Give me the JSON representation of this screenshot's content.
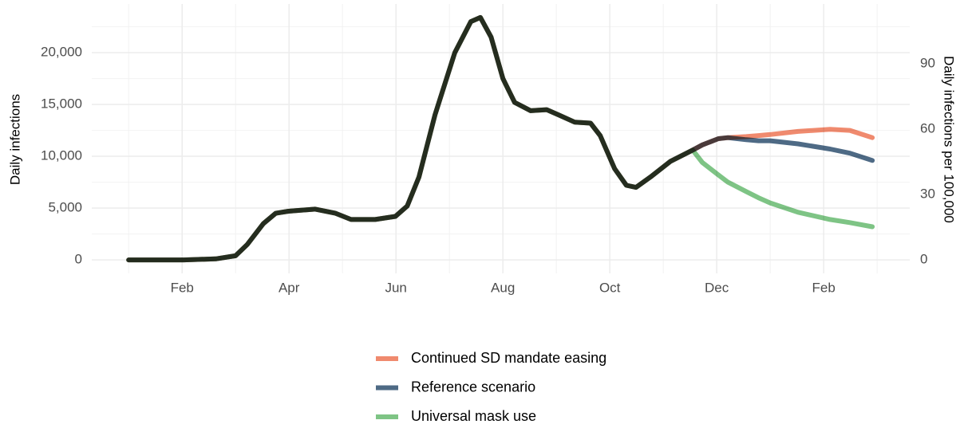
{
  "chart_data": {
    "type": "line",
    "ylabel": "Daily infections",
    "y2label": "Daily infections per 100,000",
    "x": [
      1.0,
      2.03,
      2.63,
      3.0,
      3.22,
      3.52,
      3.75,
      3.99,
      4.49,
      4.87,
      5.16,
      5.61,
      5.99,
      6.21,
      6.43,
      6.73,
      7.1,
      7.4,
      7.58,
      7.78,
      8.0,
      8.22,
      8.52,
      8.82,
      9.04,
      9.34,
      9.64,
      9.82,
      10.09,
      10.31,
      10.49,
      10.76,
      11.13,
      11.55,
      11.73,
      12.03,
      12.21,
      12.55,
      12.78,
      13.0,
      13.52,
      14.12,
      14.49,
      14.91
    ],
    "series": [
      {
        "name": "Continued SD mandate easing",
        "color": "#f08a6e",
        "values": [
          0,
          0,
          100,
          400,
          1500,
          3500,
          4500,
          4700,
          4900,
          4500,
          3900,
          3900,
          4200,
          5200,
          8000,
          14000,
          20000,
          23000,
          23400,
          21500,
          17500,
          15200,
          14400,
          14500,
          14000,
          13300,
          13200,
          12000,
          8800,
          7200,
          7000,
          8000,
          9500,
          10600,
          11100,
          11700,
          11800,
          11900,
          12000,
          12100,
          12400,
          12600,
          12500,
          11800
        ]
      },
      {
        "name": "Reference scenario",
        "color": "#4e6a85",
        "values": [
          0,
          0,
          100,
          400,
          1500,
          3500,
          4500,
          4700,
          4900,
          4500,
          3900,
          3900,
          4200,
          5200,
          8000,
          14000,
          20000,
          23000,
          23400,
          21500,
          17500,
          15200,
          14400,
          14500,
          14000,
          13300,
          13200,
          12000,
          8800,
          7200,
          7000,
          8000,
          9500,
          10600,
          11100,
          11700,
          11800,
          11600,
          11500,
          11500,
          11200,
          10700,
          10300,
          9600
        ]
      },
      {
        "name": "Universal mask use",
        "color": "#7ec485",
        "values": [
          0,
          0,
          100,
          400,
          1500,
          3500,
          4500,
          4700,
          4900,
          4500,
          3900,
          3900,
          4200,
          5200,
          8000,
          14000,
          20000,
          23000,
          23400,
          21500,
          17500,
          15200,
          14400,
          14500,
          14000,
          13300,
          13200,
          12000,
          8800,
          7200,
          7000,
          8000,
          9500,
          10600,
          9400,
          8200,
          7500,
          6600,
          6000,
          5500,
          4600,
          3900,
          3600,
          3200
        ]
      }
    ],
    "xlim": [
      0.31,
      15.61
    ],
    "xticks": [
      {
        "value": 2,
        "label": "Feb"
      },
      {
        "value": 4,
        "label": "Apr"
      },
      {
        "value": 6,
        "label": "Jun"
      },
      {
        "value": 8,
        "label": "Aug"
      },
      {
        "value": 10,
        "label": "Oct"
      },
      {
        "value": 12,
        "label": "Dec"
      },
      {
        "value": 14,
        "label": "Feb"
      }
    ],
    "ylim": [
      -1300,
      24700
    ],
    "yticks": [
      0,
      {
        "value": 5000,
        "label": "5,000"
      },
      {
        "value": 10000,
        "label": "10,000"
      },
      {
        "value": 15000,
        "label": "15,000"
      },
      {
        "value": 20000,
        "label": "20,000"
      }
    ],
    "y2lim": [
      -6.2,
      117.4
    ],
    "y2ticks": [
      0,
      30,
      60,
      90
    ],
    "grid": true,
    "legend": "bottom"
  }
}
